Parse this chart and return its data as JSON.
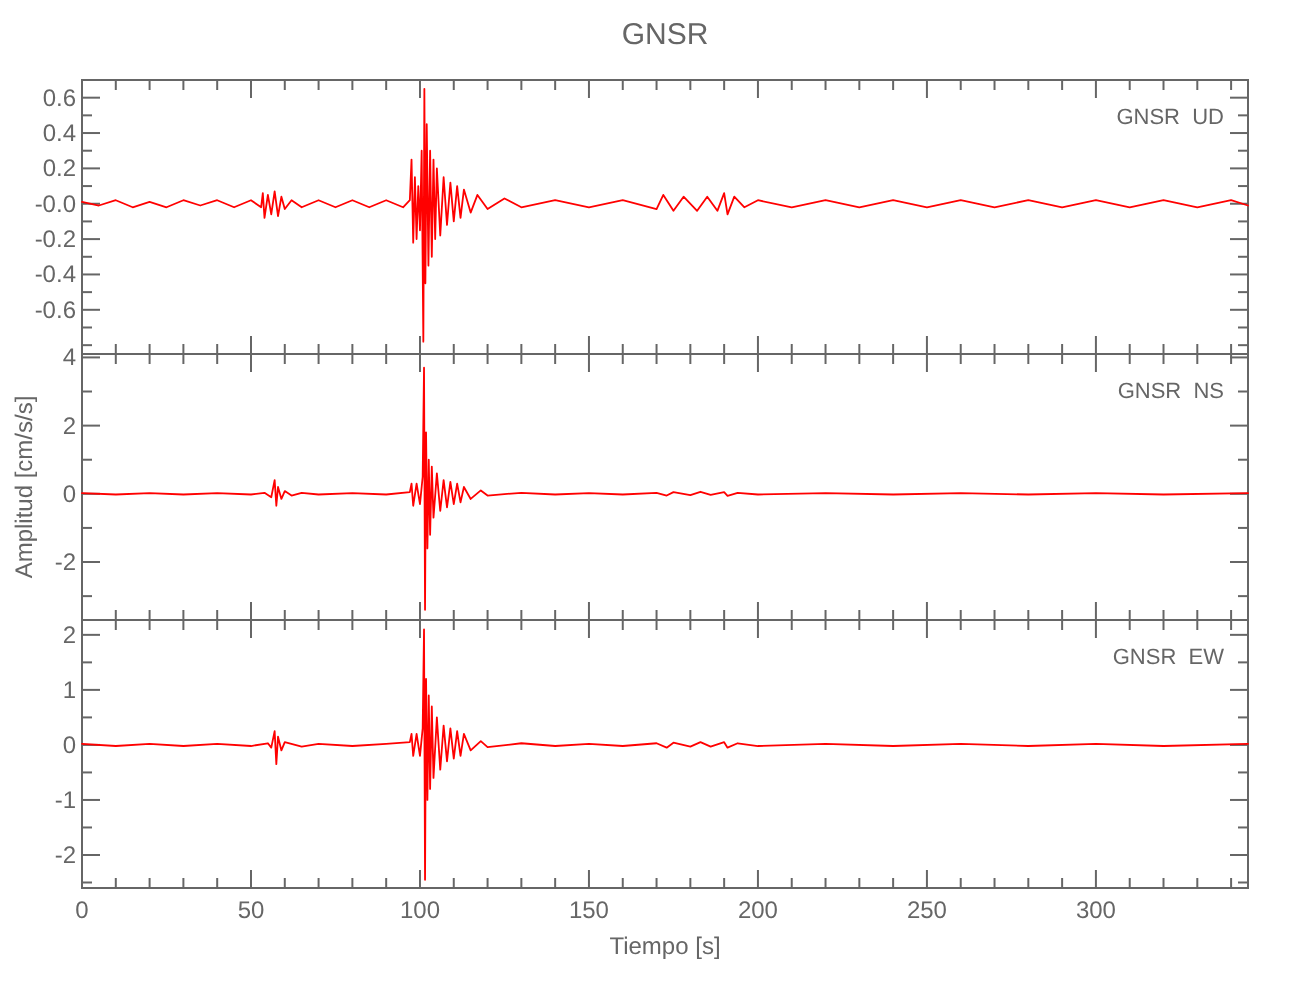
{
  "chart_data": [
    {
      "type": "line",
      "title": "GNSR",
      "annotations": [
        "GNSR  UD"
      ],
      "tick_labels": "y",
      "xlim": [
        0,
        345
      ],
      "ylim": [
        -0.85,
        0.7
      ],
      "xticks": [
        0,
        {
          "value": 10,
          "label": null
        },
        {
          "value": 20,
          "label": null
        },
        {
          "value": 30,
          "label": null
        },
        {
          "value": 40,
          "label": null
        },
        50,
        {
          "value": 60,
          "label": null
        },
        {
          "value": 70,
          "label": null
        },
        {
          "value": 80,
          "label": null
        },
        {
          "value": 90,
          "label": null
        },
        100,
        {
          "value": 110,
          "label": null
        },
        {
          "value": 120,
          "label": null
        },
        {
          "value": 130,
          "label": null
        },
        {
          "value": 140,
          "label": null
        },
        150,
        {
          "value": 160,
          "label": null
        },
        {
          "value": 170,
          "label": null
        },
        {
          "value": 180,
          "label": null
        },
        {
          "value": 190,
          "label": null
        },
        200,
        {
          "value": 210,
          "label": null
        },
        {
          "value": 220,
          "label": null
        },
        {
          "value": 230,
          "label": null
        },
        {
          "value": 240,
          "label": null
        },
        250,
        {
          "value": 260,
          "label": null
        },
        {
          "value": 270,
          "label": null
        },
        {
          "value": 280,
          "label": null
        },
        {
          "value": 290,
          "label": null
        },
        300,
        {
          "value": 310,
          "label": null
        },
        {
          "value": 320,
          "label": null
        },
        {
          "value": 330,
          "label": null
        },
        {
          "value": 340,
          "label": null
        }
      ],
      "yticks": [
        0.6,
        {
          "value": 0.5,
          "label": null
        },
        0.4,
        {
          "value": 0.3,
          "label": null
        },
        0.2,
        {
          "value": 0.1,
          "label": null
        },
        {
          "value": 0,
          "label": "-0.0"
        },
        {
          "value": -0.1,
          "label": null
        },
        -0.2,
        {
          "value": -0.3,
          "label": null
        },
        -0.4,
        {
          "value": -0.5,
          "label": null
        },
        -0.6,
        {
          "value": -0.7,
          "label": null
        },
        {
          "value": -0.8,
          "label": null
        }
      ],
      "series": [
        {
          "color": "#ff0000",
          "x": [
            0,
            5,
            10,
            15,
            20,
            25,
            30,
            35,
            40,
            45,
            50,
            53,
            53.5,
            54,
            55,
            56,
            57,
            58,
            59,
            60,
            62,
            65,
            70,
            75,
            80,
            85,
            90,
            95,
            97,
            97.5,
            98,
            98.5,
            99,
            99.5,
            100,
            100.5,
            101,
            101.3,
            101.6,
            102,
            102.5,
            103,
            103.5,
            104,
            104.5,
            105,
            106,
            107,
            108,
            109,
            110,
            111,
            112,
            113,
            115,
            117,
            120,
            125,
            130,
            140,
            150,
            160,
            170,
            172,
            175,
            178,
            182,
            185,
            188,
            190,
            191,
            193,
            196,
            200,
            210,
            220,
            230,
            240,
            250,
            260,
            270,
            280,
            290,
            300,
            310,
            320,
            330,
            340,
            345
          ],
          "values": [
            0.01,
            -0.01,
            0.02,
            -0.02,
            0.01,
            -0.02,
            0.02,
            -0.01,
            0.02,
            -0.02,
            0.02,
            -0.02,
            0.06,
            -0.08,
            0.05,
            -0.06,
            0.07,
            -0.07,
            0.04,
            -0.03,
            0.02,
            -0.02,
            0.02,
            -0.02,
            0.02,
            -0.02,
            0.02,
            -0.02,
            0.02,
            0.25,
            -0.22,
            0.15,
            -0.2,
            0.1,
            -0.15,
            0.3,
            -0.78,
            0.65,
            -0.45,
            0.45,
            -0.35,
            0.3,
            -0.3,
            0.25,
            -0.2,
            0.2,
            -0.18,
            0.15,
            -0.12,
            0.12,
            -0.1,
            0.1,
            -0.08,
            0.08,
            -0.05,
            0.05,
            -0.03,
            0.03,
            -0.02,
            0.02,
            -0.02,
            0.02,
            -0.03,
            0.05,
            -0.04,
            0.04,
            -0.04,
            0.04,
            -0.04,
            0.06,
            -0.06,
            0.04,
            -0.02,
            0.02,
            -0.02,
            0.02,
            -0.02,
            0.02,
            -0.02,
            0.02,
            -0.02,
            0.02,
            -0.02,
            0.02,
            -0.02,
            0.02,
            -0.02,
            0.02,
            -0.01
          ]
        }
      ]
    },
    {
      "type": "line",
      "ylabel": "Amplitud [cm/s/s]",
      "annotations": [
        "GNSR  NS"
      ],
      "tick_labels": "y",
      "xlim": [
        0,
        345
      ],
      "ylim": [
        -3.7,
        4.1
      ],
      "xticks": [
        0,
        {
          "value": 10,
          "label": null
        },
        {
          "value": 20,
          "label": null
        },
        {
          "value": 30,
          "label": null
        },
        {
          "value": 40,
          "label": null
        },
        50,
        {
          "value": 60,
          "label": null
        },
        {
          "value": 70,
          "label": null
        },
        {
          "value": 80,
          "label": null
        },
        {
          "value": 90,
          "label": null
        },
        100,
        {
          "value": 110,
          "label": null
        },
        {
          "value": 120,
          "label": null
        },
        {
          "value": 130,
          "label": null
        },
        {
          "value": 140,
          "label": null
        },
        150,
        {
          "value": 160,
          "label": null
        },
        {
          "value": 170,
          "label": null
        },
        {
          "value": 180,
          "label": null
        },
        {
          "value": 190,
          "label": null
        },
        200,
        {
          "value": 210,
          "label": null
        },
        {
          "value": 220,
          "label": null
        },
        {
          "value": 230,
          "label": null
        },
        {
          "value": 240,
          "label": null
        },
        250,
        {
          "value": 260,
          "label": null
        },
        {
          "value": 270,
          "label": null
        },
        {
          "value": 280,
          "label": null
        },
        {
          "value": 290,
          "label": null
        },
        300,
        {
          "value": 310,
          "label": null
        },
        {
          "value": 320,
          "label": null
        },
        {
          "value": 330,
          "label": null
        },
        {
          "value": 340,
          "label": null
        }
      ],
      "yticks": [
        4,
        {
          "value": 3,
          "label": null
        },
        2,
        {
          "value": 1,
          "label": null
        },
        0,
        {
          "value": -1,
          "label": null
        },
        -2,
        {
          "value": -3,
          "label": null
        }
      ],
      "series": [
        {
          "color": "#ff0000",
          "x": [
            0,
            10,
            20,
            30,
            40,
            50,
            54,
            56,
            57,
            57.5,
            58,
            59,
            60,
            62,
            65,
            70,
            80,
            90,
            97,
            97.5,
            98,
            99,
            100,
            100.8,
            101.2,
            101.5,
            101.8,
            102.2,
            102.6,
            103,
            103.5,
            104,
            105,
            106,
            107,
            108,
            109,
            110,
            111,
            112,
            113,
            115,
            118,
            120,
            130,
            140,
            150,
            160,
            170,
            173,
            175,
            180,
            183,
            186,
            190,
            191,
            194,
            200,
            220,
            240,
            260,
            280,
            300,
            320,
            345
          ],
          "values": [
            0.02,
            -0.02,
            0.02,
            -0.02,
            0.02,
            -0.02,
            0.03,
            -0.1,
            0.4,
            -0.35,
            0.2,
            -0.15,
            0.08,
            -0.05,
            0.03,
            -0.02,
            0.02,
            -0.02,
            0.05,
            0.3,
            -0.35,
            0.3,
            -0.3,
            0.5,
            3.7,
            -3.4,
            1.8,
            -1.6,
            1.0,
            -1.2,
            0.8,
            -0.7,
            0.6,
            -0.5,
            0.4,
            -0.4,
            0.35,
            -0.3,
            0.3,
            -0.25,
            0.2,
            -0.15,
            0.1,
            -0.05,
            0.03,
            -0.02,
            0.02,
            -0.02,
            0.03,
            -0.05,
            0.05,
            -0.04,
            0.06,
            -0.03,
            0.05,
            -0.06,
            0.03,
            -0.02,
            0.02,
            -0.02,
            0.02,
            -0.02,
            0.02,
            -0.02,
            0.02
          ]
        }
      ]
    },
    {
      "type": "line",
      "xlabel": "Tiempo [s]",
      "annotations": [
        "GNSR  EW"
      ],
      "xlim": [
        0,
        345
      ],
      "ylim": [
        -2.6,
        2.27
      ],
      "xticks": [
        0,
        {
          "value": 10,
          "label": null
        },
        {
          "value": 20,
          "label": null
        },
        {
          "value": 30,
          "label": null
        },
        {
          "value": 40,
          "label": null
        },
        50,
        {
          "value": 60,
          "label": null
        },
        {
          "value": 70,
          "label": null
        },
        {
          "value": 80,
          "label": null
        },
        {
          "value": 90,
          "label": null
        },
        100,
        {
          "value": 110,
          "label": null
        },
        {
          "value": 120,
          "label": null
        },
        {
          "value": 130,
          "label": null
        },
        {
          "value": 140,
          "label": null
        },
        150,
        {
          "value": 160,
          "label": null
        },
        {
          "value": 170,
          "label": null
        },
        {
          "value": 180,
          "label": null
        },
        {
          "value": 190,
          "label": null
        },
        200,
        {
          "value": 210,
          "label": null
        },
        {
          "value": 220,
          "label": null
        },
        {
          "value": 230,
          "label": null
        },
        {
          "value": 240,
          "label": null
        },
        250,
        {
          "value": 260,
          "label": null
        },
        {
          "value": 270,
          "label": null
        },
        {
          "value": 280,
          "label": null
        },
        {
          "value": 290,
          "label": null
        },
        300,
        {
          "value": 310,
          "label": null
        },
        {
          "value": 320,
          "label": null
        },
        {
          "value": 330,
          "label": null
        },
        {
          "value": 340,
          "label": null
        }
      ],
      "yticks": [
        2,
        {
          "value": 1.5,
          "label": null
        },
        1,
        {
          "value": 0.5,
          "label": null
        },
        0,
        {
          "value": -0.5,
          "label": null
        },
        -1,
        {
          "value": -1.5,
          "label": null
        },
        -2,
        {
          "value": -2.5,
          "label": null
        }
      ],
      "series": [
        {
          "color": "#ff0000",
          "x": [
            0,
            10,
            20,
            30,
            40,
            50,
            55,
            56,
            57,
            57.5,
            58,
            59,
            60,
            65,
            70,
            80,
            90,
            97,
            97.5,
            98,
            99,
            100,
            100.8,
            101.2,
            101.5,
            101.8,
            102.2,
            102.6,
            103,
            103.5,
            104,
            105,
            106,
            107,
            108,
            109,
            110,
            111,
            112,
            113,
            115,
            118,
            120,
            130,
            140,
            150,
            160,
            170,
            173,
            175,
            180,
            183,
            186,
            190,
            191,
            194,
            200,
            220,
            240,
            260,
            280,
            300,
            320,
            345
          ],
          "values": [
            0.02,
            -0.02,
            0.02,
            -0.02,
            0.02,
            -0.02,
            0.03,
            -0.05,
            0.25,
            -0.35,
            0.15,
            -0.1,
            0.05,
            -0.03,
            0.02,
            -0.02,
            0.02,
            0.05,
            0.2,
            -0.2,
            0.2,
            -0.2,
            0.3,
            2.1,
            -2.45,
            1.2,
            -1.0,
            0.9,
            -0.8,
            0.7,
            -0.6,
            0.5,
            -0.45,
            0.35,
            -0.3,
            0.3,
            -0.25,
            0.25,
            -0.2,
            0.2,
            -0.1,
            0.07,
            -0.04,
            0.03,
            -0.02,
            0.02,
            -0.02,
            0.03,
            -0.05,
            0.04,
            -0.03,
            0.05,
            -0.03,
            0.05,
            -0.05,
            0.03,
            -0.02,
            0.02,
            -0.02,
            0.02,
            -0.02,
            0.02,
            -0.02,
            0.02
          ]
        }
      ]
    }
  ]
}
